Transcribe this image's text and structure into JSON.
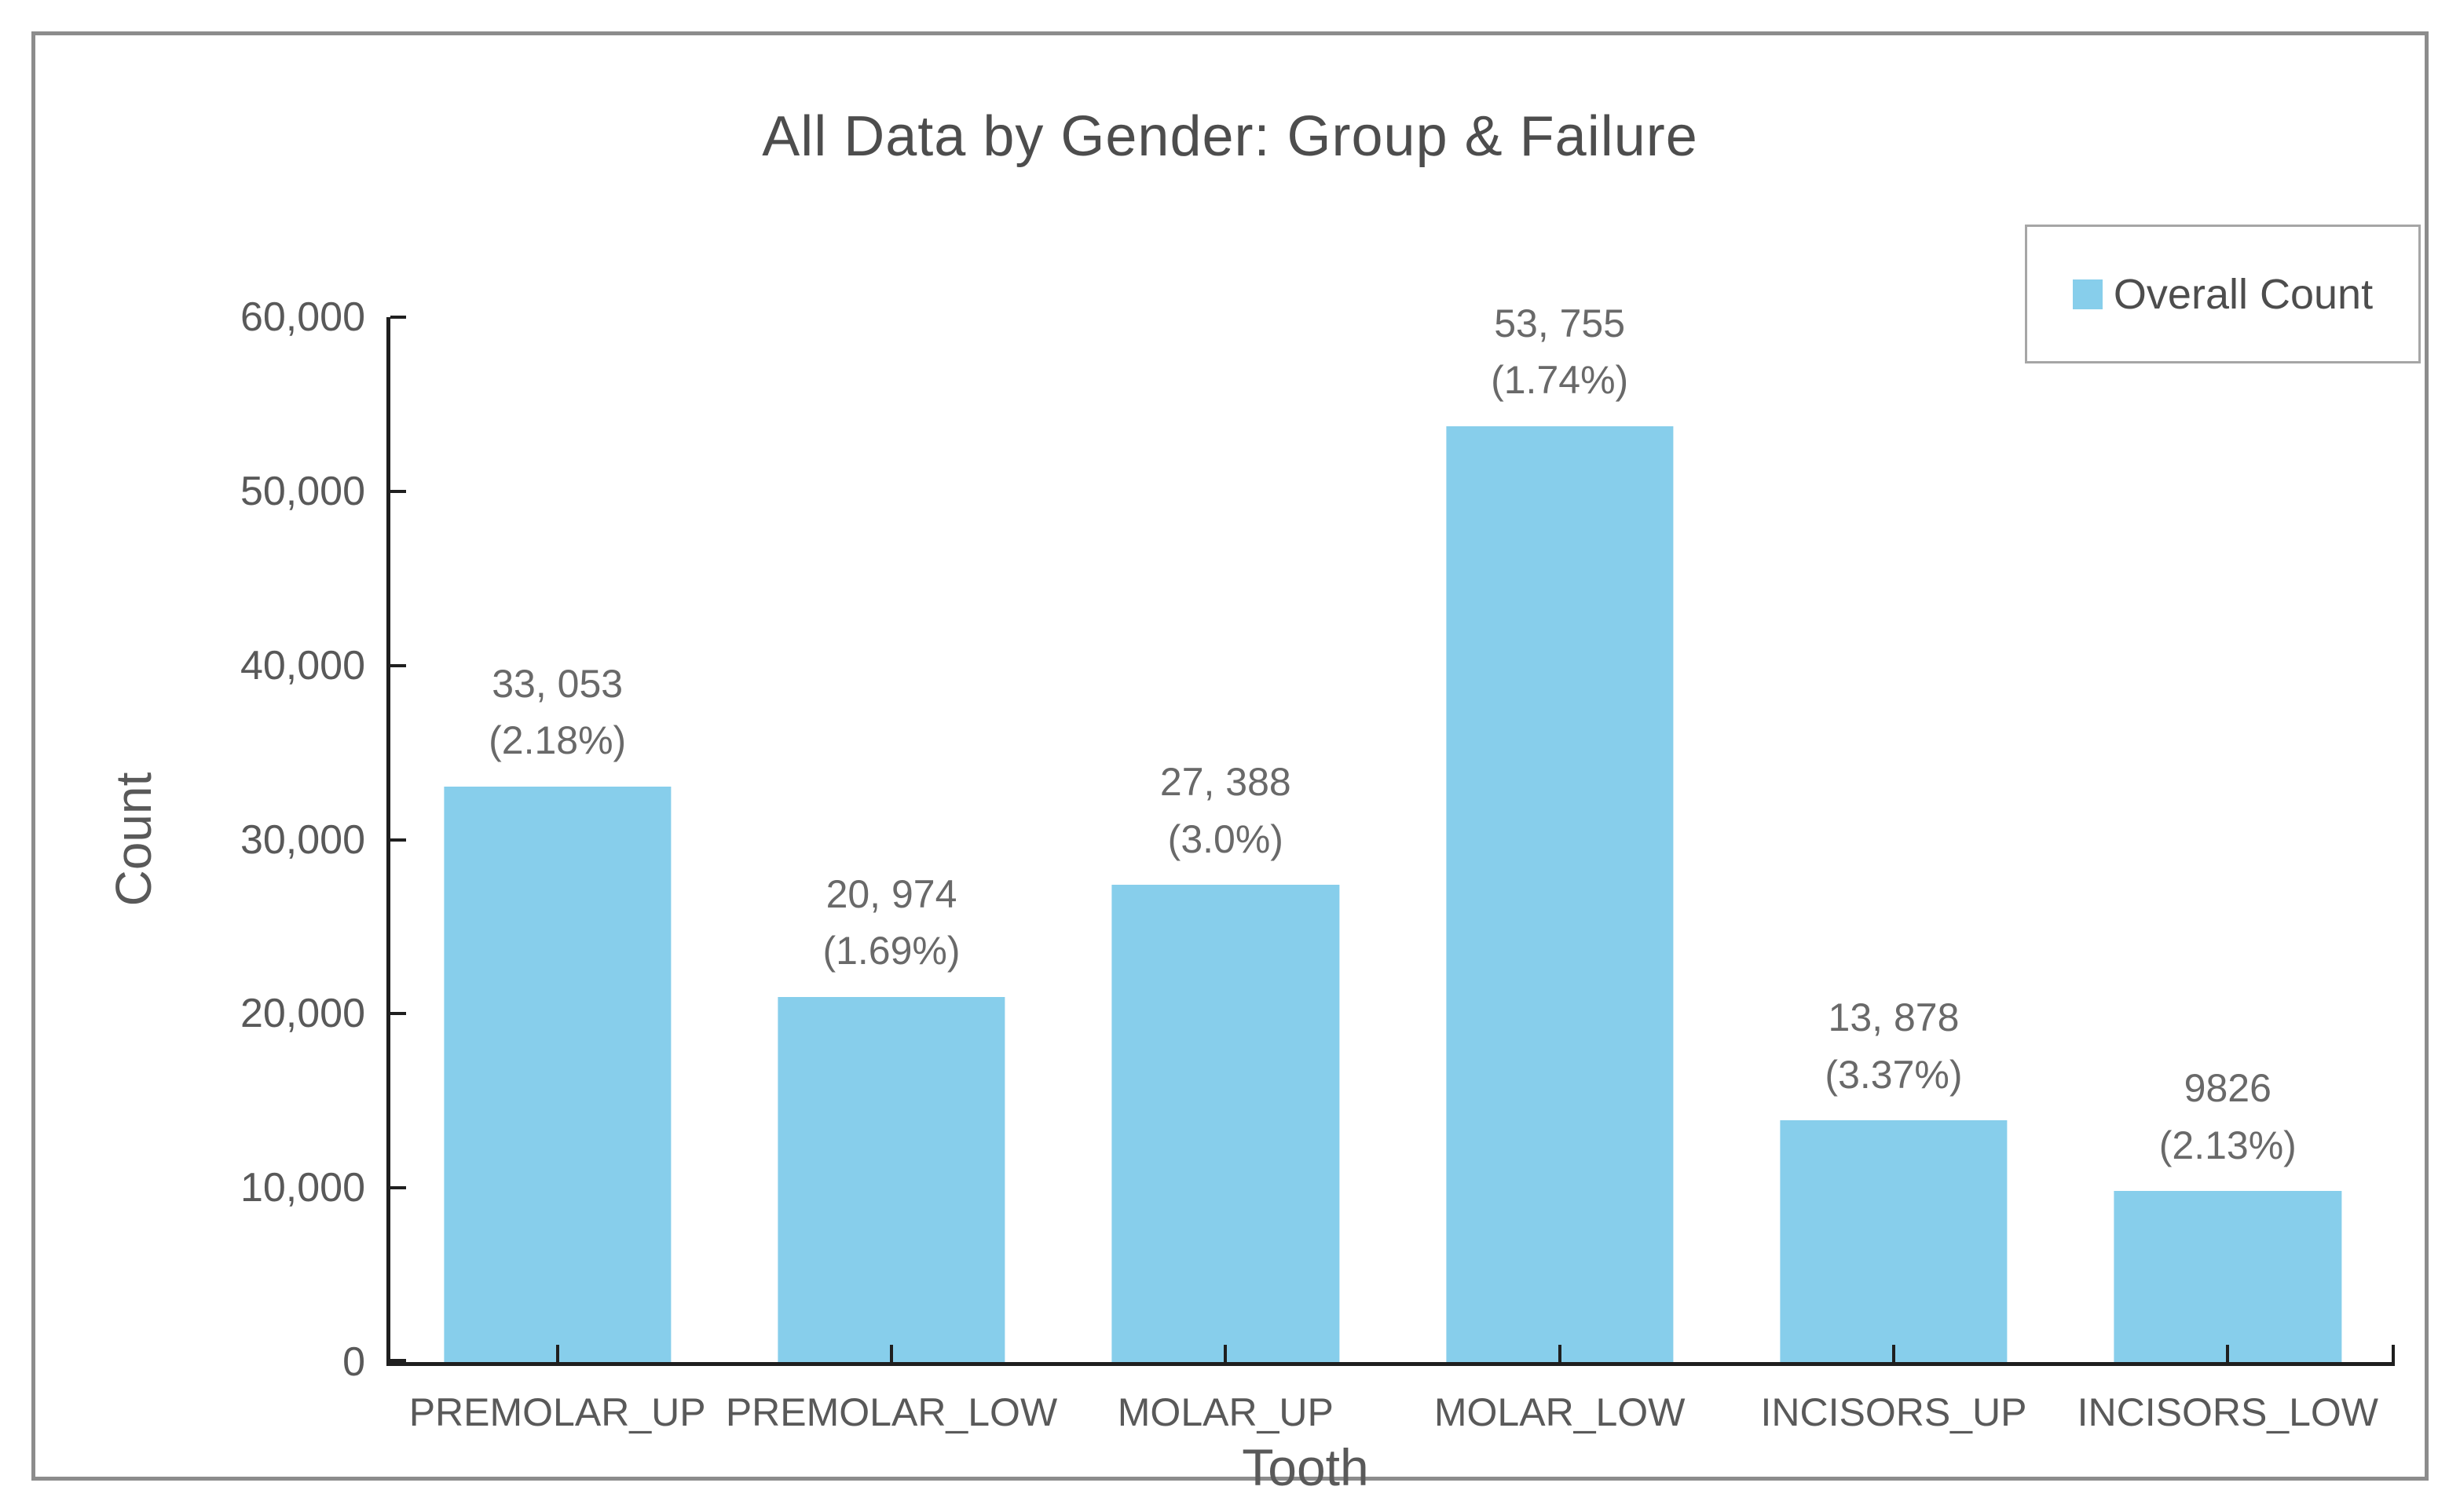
{
  "window": {
    "background_color": "#FFFFFF",
    "frame_border_color": "#8C8C8C"
  },
  "chart_data": {
    "type": "bar",
    "title": "All Data by Gender: Group & Failure",
    "xlabel": "Tooth",
    "ylabel": "Count",
    "ylim": [
      0,
      60000
    ],
    "grid": false,
    "legend": {
      "label": "Overall Count",
      "position": "top-right"
    },
    "categories": [
      "PREMOLAR_UP",
      "PREMOLAR_LOW",
      "MOLAR_UP",
      "MOLAR_LOW",
      "INCISORS_UP",
      "INCISORS_LOW"
    ],
    "values": [
      33053,
      20974,
      27388,
      53755,
      13878,
      9826
    ],
    "bar_labels": [
      {
        "count": "33, 053",
        "percent": "(2.18%)"
      },
      {
        "count": "20, 974",
        "percent": "(1.69%)"
      },
      {
        "count": "27, 388",
        "percent": "(3.0%)"
      },
      {
        "count": "53, 755",
        "percent": "(1.74%)"
      },
      {
        "count": "13, 878",
        "percent": "(3.37%)"
      },
      {
        "count": "9826",
        "percent": "(2.13%)"
      }
    ],
    "yticks": [
      {
        "label": "0",
        "value": 0
      },
      {
        "label": "10,000",
        "value": 10000
      },
      {
        "label": "20,000",
        "value": 20000
      },
      {
        "label": "30,000",
        "value": 30000
      },
      {
        "label": "40,000",
        "value": 40000
      },
      {
        "label": "50,000",
        "value": 50000
      },
      {
        "label": "60,000",
        "value": 60000
      }
    ],
    "colors": {
      "bar": "#87CEEB",
      "axis": "#1F1F1F",
      "bar_label_text": "#696969",
      "tick_text": "#595959",
      "title_text": "#4D4D4D",
      "legend_border": "#A6A6A6"
    }
  }
}
